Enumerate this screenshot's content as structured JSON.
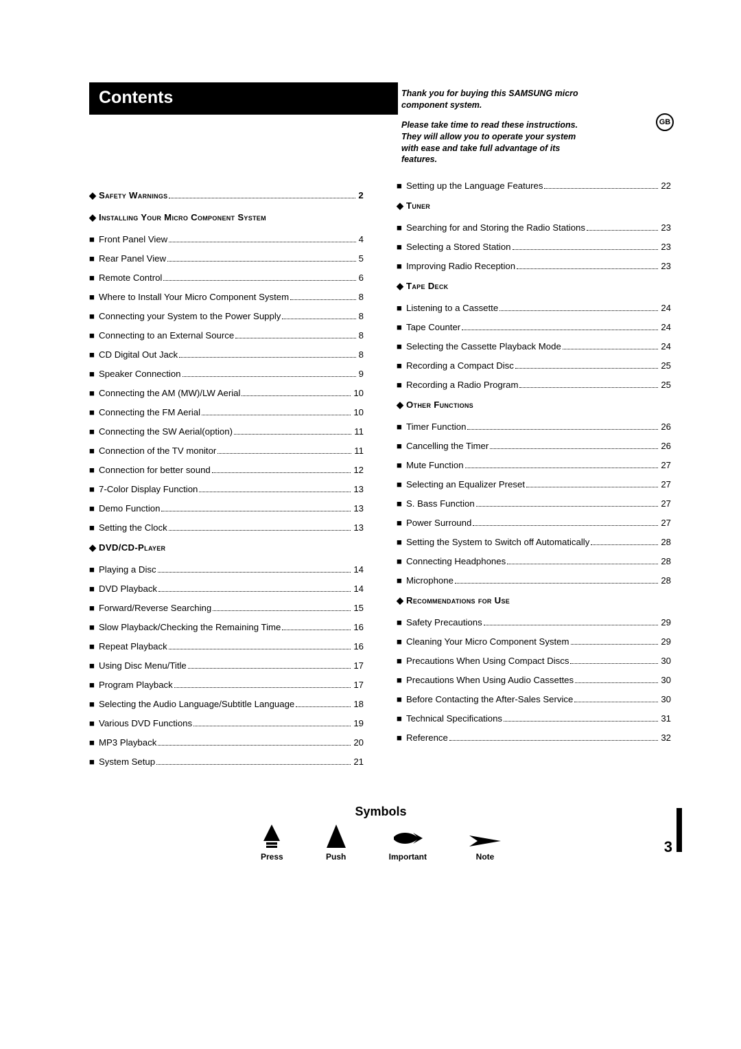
{
  "title": "Contents",
  "intro": {
    "p1": "Thank you for buying this SAMSUNG micro component system.",
    "p2": "Please take time to read these instructions. They will allow you to operate your system with ease and take full advantage of its features."
  },
  "gb_badge": "GB",
  "page_number": "3",
  "symbols_title": "Symbols",
  "symbols": {
    "press": "Press",
    "push": "Push",
    "important": "Important",
    "note": "Note"
  },
  "left": [
    {
      "type": "section",
      "bullet": "◆",
      "label": "Safety Warnings",
      "page": "2",
      "leader": true
    },
    {
      "type": "section",
      "bullet": "◆",
      "label": "Installing Your Micro Component System"
    },
    {
      "type": "item",
      "bullet": "■",
      "label": "Front Panel View",
      "page": "4"
    },
    {
      "type": "item",
      "bullet": "■",
      "label": "Rear Panel View",
      "page": "5"
    },
    {
      "type": "item",
      "bullet": "■",
      "label": "Remote Control",
      "page": "6"
    },
    {
      "type": "item",
      "bullet": "■",
      "label": "Where to Install Your Micro Component System",
      "page": "8"
    },
    {
      "type": "item",
      "bullet": "■",
      "label": "Connecting your System to the Power Supply",
      "page": "8"
    },
    {
      "type": "item",
      "bullet": "■",
      "label": "Connecting to an External Source",
      "page": "8"
    },
    {
      "type": "item",
      "bullet": "■",
      "label": "CD Digital Out Jack",
      "page": "8"
    },
    {
      "type": "item",
      "bullet": "■",
      "label": "Speaker Connection",
      "page": "9"
    },
    {
      "type": "item",
      "bullet": "■",
      "label": "Connecting the AM (MW)/LW Aerial",
      "page": "10"
    },
    {
      "type": "item",
      "bullet": "■",
      "label": "Connecting the FM Aerial",
      "page": "10"
    },
    {
      "type": "item",
      "bullet": "■",
      "label": "Connecting the SW Aerial(option)",
      "page": "11"
    },
    {
      "type": "item",
      "bullet": "■",
      "label": "Connection of the TV monitor",
      "page": "11"
    },
    {
      "type": "item",
      "bullet": "■",
      "label": "Connection for better sound",
      "page": "12"
    },
    {
      "type": "item",
      "bullet": "■",
      "label": "7-Color Display Function",
      "page": "13"
    },
    {
      "type": "item",
      "bullet": "■",
      "label": "Demo Function",
      "page": "13"
    },
    {
      "type": "item",
      "bullet": "■",
      "label": "Setting the Clock",
      "page": "13"
    },
    {
      "type": "section",
      "bullet": "◆",
      "label": "DVD/CD-Player"
    },
    {
      "type": "item",
      "bullet": "■",
      "label": "Playing a Disc",
      "page": "14"
    },
    {
      "type": "item",
      "bullet": "■",
      "label": "DVD Playback",
      "page": "14"
    },
    {
      "type": "item",
      "bullet": "■",
      "label": "Forward/Reverse Searching",
      "page": "15"
    },
    {
      "type": "item",
      "bullet": "■",
      "label": "Slow Playback/Checking the Remaining Time",
      "page": "16"
    },
    {
      "type": "item",
      "bullet": "■",
      "label": "Repeat Playback",
      "page": "16"
    },
    {
      "type": "item",
      "bullet": "■",
      "label": "Using Disc Menu/Title",
      "page": "17"
    },
    {
      "type": "item",
      "bullet": "■",
      "label": "Program Playback",
      "page": "17"
    },
    {
      "type": "item",
      "bullet": "■",
      "label": "Selecting the Audio Language/Subtitle Language",
      "page": "18"
    },
    {
      "type": "item",
      "bullet": "■",
      "label": "Various DVD Functions",
      "page": "19"
    },
    {
      "type": "item",
      "bullet": "■",
      "label": "MP3 Playback",
      "page": "20"
    },
    {
      "type": "item",
      "bullet": "■",
      "label": "System Setup",
      "page": "21"
    }
  ],
  "right": [
    {
      "type": "item",
      "bullet": "■",
      "label": "Setting up the Language Features",
      "page": "22"
    },
    {
      "type": "section",
      "bullet": "◆",
      "label": "Tuner"
    },
    {
      "type": "item",
      "bullet": "■",
      "label": "Searching for and Storing the Radio Stations",
      "page": "23"
    },
    {
      "type": "item",
      "bullet": "■",
      "label": "Selecting a Stored Station",
      "page": "23"
    },
    {
      "type": "item",
      "bullet": "■",
      "label": "Improving Radio Reception",
      "page": "23"
    },
    {
      "type": "section",
      "bullet": "◆",
      "label": "Tape Deck"
    },
    {
      "type": "item",
      "bullet": "■",
      "label": "Listening to a Cassette",
      "page": "24"
    },
    {
      "type": "item",
      "bullet": "■",
      "label": "Tape Counter",
      "page": "24"
    },
    {
      "type": "item",
      "bullet": "■",
      "label": "Selecting the Cassette Playback Mode",
      "page": "24"
    },
    {
      "type": "item",
      "bullet": "■",
      "label": "Recording a Compact Disc",
      "page": "25"
    },
    {
      "type": "item",
      "bullet": "■",
      "label": "Recording a Radio Program",
      "page": "25"
    },
    {
      "type": "section",
      "bullet": "◆",
      "label": "Other Functions"
    },
    {
      "type": "item",
      "bullet": "■",
      "label": "Timer Function",
      "page": "26"
    },
    {
      "type": "item",
      "bullet": "■",
      "label": "Cancelling the Timer",
      "page": "26"
    },
    {
      "type": "item",
      "bullet": "■",
      "label": "Mute Function",
      "page": "27"
    },
    {
      "type": "item",
      "bullet": "■",
      "label": "Selecting an Equalizer Preset",
      "page": "27"
    },
    {
      "type": "item",
      "bullet": "■",
      "label": "S. Bass Function",
      "page": "27"
    },
    {
      "type": "item",
      "bullet": "■",
      "label": "Power Surround",
      "page": "27"
    },
    {
      "type": "item",
      "bullet": "■",
      "label": "Setting the System to Switch off Automatically",
      "page": "28"
    },
    {
      "type": "item",
      "bullet": "■",
      "label": "Connecting Headphones",
      "page": "28"
    },
    {
      "type": "item",
      "bullet": "■",
      "label": "Microphone",
      "page": "28"
    },
    {
      "type": "section",
      "bullet": "◆",
      "label": "Recommendations for Use"
    },
    {
      "type": "item",
      "bullet": "■",
      "label": "Safety Precautions",
      "page": "29"
    },
    {
      "type": "item",
      "bullet": "■",
      "label": "Cleaning Your Micro Component System",
      "page": "29"
    },
    {
      "type": "item",
      "bullet": "■",
      "label": "Precautions When Using Compact Discs",
      "page": "30"
    },
    {
      "type": "item",
      "bullet": "■",
      "label": "Precautions When Using Audio Cassettes",
      "page": "30"
    },
    {
      "type": "item",
      "bullet": "■",
      "label": "Before Contacting the After-Sales Service",
      "page": "30"
    },
    {
      "type": "item",
      "bullet": "■",
      "label": "Technical Specifications",
      "page": "31"
    },
    {
      "type": "item",
      "bullet": "■",
      "label": "Reference",
      "page": "32"
    }
  ]
}
